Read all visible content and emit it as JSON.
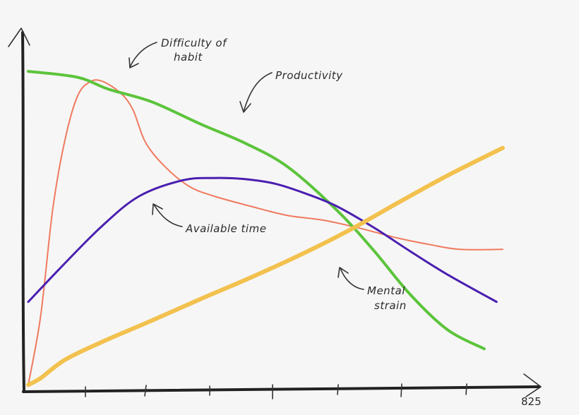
{
  "chart_data": {
    "type": "line",
    "title": "",
    "xlabel": "",
    "ylabel": "",
    "xlim": [
      0,
      825
    ],
    "ylim": [
      0,
      100
    ],
    "tick_labels": [
      "825"
    ],
    "series": [
      {
        "name": "Productivity",
        "color": "#5cc43b",
        "width": 4,
        "x": [
          0,
          80,
          130,
          200,
          280,
          350,
          420,
          500,
          560,
          620,
          680,
          740
        ],
        "y": [
          95.5,
          93.7,
          90.1,
          86.3,
          79.5,
          73.9,
          66.7,
          53.6,
          41.4,
          27.9,
          17.3,
          11.5
        ]
      },
      {
        "name": "Difficulty of habit",
        "color": "#f07a5f",
        "width": 2,
        "x": [
          0,
          20,
          40,
          60,
          80,
          100,
          120,
          150,
          170,
          190,
          220,
          260,
          300,
          360,
          420,
          480,
          540,
          600,
          650,
          700,
          770
        ],
        "y": [
          0.6,
          21.3,
          54.1,
          75.1,
          88.0,
          92.3,
          92.5,
          88.9,
          83.8,
          74.1,
          67.0,
          60.8,
          57.8,
          54.7,
          51.9,
          50.4,
          47.9,
          45.0,
          43.1,
          41.6,
          41.6
        ]
      },
      {
        "name": "Available time",
        "color": "#4a1fb0",
        "width": 3,
        "x": [
          0,
          60,
          120,
          180,
          250,
          300,
          350,
          400,
          450,
          500,
          560,
          620,
          680,
          760
        ],
        "y": [
          25.7,
          37.5,
          48.7,
          57.7,
          62.5,
          63.2,
          62.9,
          61.5,
          58.5,
          54.7,
          48.3,
          41.0,
          34.0,
          25.7
        ]
      },
      {
        "name": "Mental strain",
        "color": "#f2c14e",
        "width": 6,
        "x": [
          0,
          20,
          60,
          120,
          200,
          280,
          360,
          440,
          520,
          600,
          680,
          770
        ],
        "y": [
          0.6,
          2.6,
          8.2,
          13.6,
          20.0,
          26.6,
          33.0,
          39.8,
          47.3,
          55.7,
          63.9,
          72.3
        ]
      }
    ],
    "annotations": [
      {
        "line1": "Difficulty of",
        "line2": "habit"
      },
      {
        "line1": "Productivity",
        "line2": ""
      },
      {
        "line1": "Available time",
        "line2": ""
      },
      {
        "line1": "Mental",
        "line2": "strain"
      }
    ],
    "grid": false,
    "legend": "none"
  }
}
